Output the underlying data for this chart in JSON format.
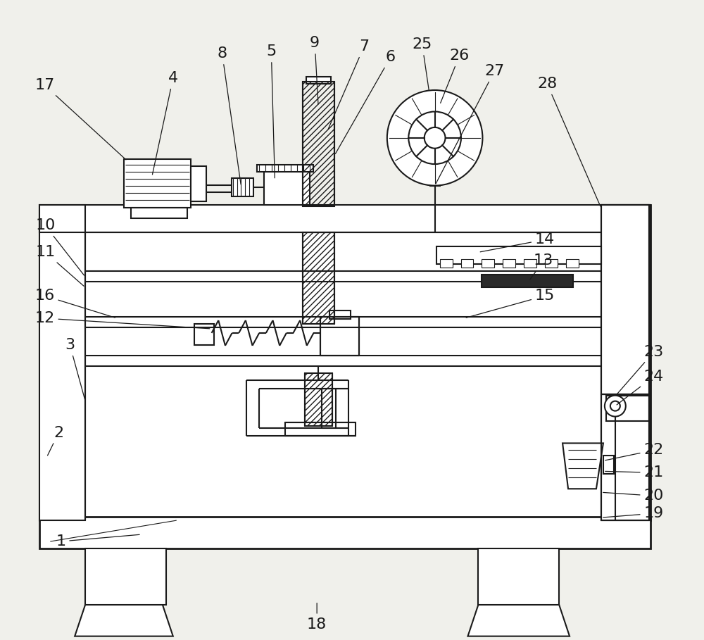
{
  "bg_color": "#f0f0eb",
  "line_color": "#1a1a1a",
  "lw": 1.5,
  "tlw": 0.8,
  "fw": 2.0
}
